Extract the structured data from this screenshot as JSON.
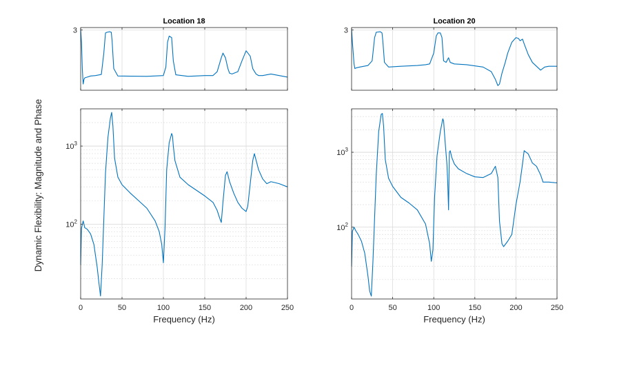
{
  "figure": {
    "ylabel": "Dynamic Flexibility: Magnitude and Phase",
    "line_color": "#0072bd"
  },
  "chart_data": [
    {
      "type": "line",
      "panel": "phase",
      "title": "Location 18",
      "xlim": [
        0,
        250
      ],
      "ylim": [
        -0.9,
        3.15
      ],
      "yticks": [
        3
      ],
      "ytick_labels": [
        "3"
      ],
      "grid": true,
      "series": [
        {
          "x": [
            0,
            1,
            2,
            3,
            4,
            5,
            8,
            12,
            18,
            25,
            28,
            30,
            32,
            35,
            37,
            38,
            40,
            45,
            60,
            80,
            100,
            103,
            105,
            107,
            110,
            112,
            115,
            130,
            150,
            160,
            165,
            170,
            172,
            175,
            178,
            180,
            183,
            190,
            195,
            200,
            205,
            208,
            212,
            215,
            220,
            225,
            230,
            235,
            240,
            250
          ],
          "y": [
            3.05,
            2.2,
            0.5,
            -0.5,
            -0.2,
            -0.1,
            -0.05,
            0.02,
            0.05,
            0.12,
            1.5,
            2.8,
            2.85,
            2.88,
            2.85,
            2.3,
            0.5,
            0.02,
            0.01,
            0.0,
            0.05,
            0.6,
            2.2,
            2.6,
            2.5,
            1.0,
            0.1,
            0.0,
            0.05,
            0.05,
            0.3,
            1.2,
            1.5,
            1.2,
            0.5,
            0.2,
            0.15,
            0.3,
            1.0,
            1.65,
            1.3,
            0.5,
            0.15,
            0.05,
            0.05,
            0.1,
            0.15,
            0.1,
            0.05,
            -0.05
          ]
        }
      ]
    },
    {
      "type": "line",
      "panel": "magnitude",
      "title": "",
      "xlabel": "Frequency (Hz)",
      "xlim": [
        0,
        250
      ],
      "xticks": [
        0,
        50,
        100,
        150,
        200,
        250
      ],
      "yscale": "log",
      "ylim": [
        11,
        3000
      ],
      "yticks": [
        100,
        1000
      ],
      "ytick_labels": [
        "10^2",
        "10^3"
      ],
      "grid": true,
      "series": [
        {
          "x": [
            0,
            1,
            3,
            5,
            8,
            12,
            16,
            20,
            22,
            24,
            26,
            30,
            33,
            36,
            37.5,
            39,
            41,
            45,
            50,
            60,
            70,
            80,
            90,
            95,
            98,
            100,
            102,
            104,
            107,
            110,
            111,
            112,
            114,
            120,
            130,
            150,
            160,
            165,
            168,
            170,
            172,
            175,
            177,
            180,
            185,
            190,
            195,
            200,
            202,
            205,
            208,
            210,
            215,
            220,
            225,
            230,
            235,
            240,
            250
          ],
          "y": [
            30,
            88,
            110,
            90,
            86,
            75,
            55,
            28,
            18,
            12,
            30,
            450,
            1300,
            2300,
            2700,
            1800,
            700,
            400,
            320,
            250,
            200,
            160,
            110,
            80,
            55,
            32,
            90,
            500,
            1100,
            1450,
            1350,
            1000,
            650,
            400,
            320,
            230,
            190,
            150,
            120,
            105,
            190,
            420,
            470,
            350,
            250,
            190,
            160,
            145,
            170,
            330,
            650,
            800,
            500,
            380,
            330,
            350,
            340,
            330,
            300
          ]
        }
      ]
    },
    {
      "type": "line",
      "panel": "phase",
      "title": "Location 20",
      "xlim": [
        0,
        250
      ],
      "ylim": [
        -0.9,
        3.15
      ],
      "yticks": [
        3
      ],
      "ytick_labels": [
        "3"
      ],
      "grid": true,
      "series": [
        {
          "x": [
            0,
            1,
            2,
            3,
            4,
            6,
            10,
            20,
            25,
            28,
            30,
            35,
            37,
            38,
            40,
            45,
            60,
            80,
            90,
            95,
            100,
            103,
            105,
            108,
            110,
            112,
            115,
            118,
            120,
            125,
            140,
            160,
            170,
            175,
            178,
            180,
            183,
            187,
            190,
            195,
            200,
            203,
            205,
            208,
            210,
            215,
            220,
            230,
            235,
            240,
            250
          ],
          "y": [
            3.05,
            2.2,
            1.5,
            0.8,
            0.5,
            0.55,
            0.6,
            0.7,
            1.0,
            2.5,
            2.85,
            2.88,
            2.8,
            2.3,
            0.9,
            0.6,
            0.65,
            0.7,
            0.75,
            0.8,
            1.5,
            2.6,
            2.8,
            2.8,
            2.5,
            1.0,
            0.9,
            1.2,
            0.9,
            0.8,
            0.75,
            0.6,
            0.3,
            -0.2,
            -0.6,
            -0.5,
            0.2,
            0.9,
            1.5,
            2.2,
            2.5,
            2.45,
            2.3,
            2.4,
            2.1,
            1.4,
            0.9,
            0.4,
            0.6,
            0.65,
            0.65
          ]
        }
      ]
    },
    {
      "type": "line",
      "panel": "magnitude",
      "title": "",
      "xlabel": "Frequency (Hz)",
      "xlim": [
        0,
        250
      ],
      "xticks": [
        0,
        50,
        100,
        150,
        200,
        250
      ],
      "yscale": "log",
      "ylim": [
        11,
        3800
      ],
      "yticks": [
        100,
        1000
      ],
      "ytick_labels": [
        "10^2",
        "10^3"
      ],
      "grid": true,
      "series": [
        {
          "x": [
            0,
            1,
            3,
            5,
            8,
            12,
            16,
            20,
            22,
            24,
            26,
            30,
            33,
            36,
            37.5,
            39,
            41,
            45,
            50,
            60,
            70,
            80,
            90,
            95,
            97,
            99,
            101,
            104,
            108,
            111,
            112,
            114,
            116,
            117,
            118,
            118.5,
            119,
            120,
            122,
            125,
            130,
            140,
            150,
            160,
            170,
            175,
            178,
            180,
            183,
            185,
            190,
            195,
            200,
            205,
            208,
            210,
            215,
            220,
            225,
            230,
            233,
            235,
            240,
            250
          ],
          "y": [
            30,
            88,
            100,
            90,
            80,
            65,
            45,
            22,
            14,
            12,
            35,
            500,
            1900,
            3200,
            3300,
            2200,
            800,
            450,
            350,
            250,
            210,
            170,
            110,
            60,
            35,
            50,
            250,
            900,
            1900,
            2800,
            2600,
            1300,
            700,
            400,
            170,
            400,
            1000,
            1050,
            850,
            700,
            600,
            520,
            470,
            460,
            520,
            650,
            460,
            120,
            60,
            55,
            65,
            80,
            200,
            400,
            700,
            1050,
            950,
            720,
            650,
            500,
            400,
            400,
            400,
            390
          ]
        }
      ]
    }
  ]
}
